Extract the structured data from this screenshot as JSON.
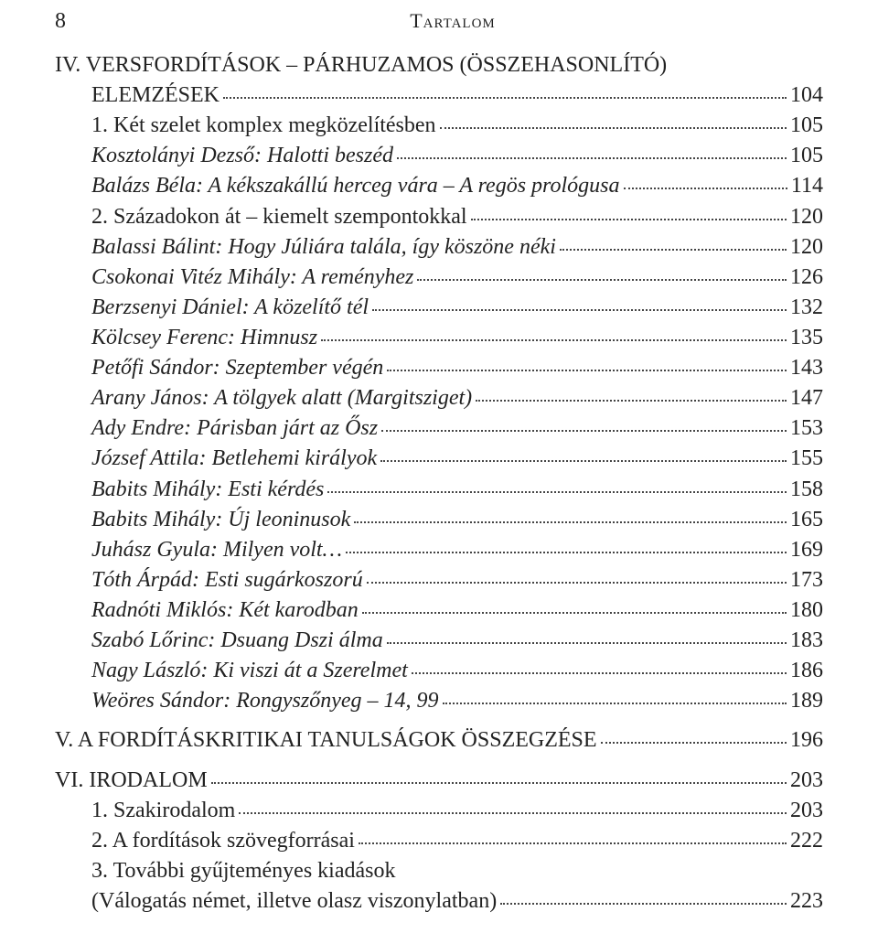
{
  "page_number": "8",
  "running_head": "Tartalom",
  "font_family": "Times New Roman",
  "text_color": "#222222",
  "background": "#ffffff",
  "leader_color": "#444444",
  "sections": {
    "iv": {
      "line1": "IV. VERSFORDÍTÁSOK – PÁRHUZAMOS (ÖSSZEHASONLÍTÓ)",
      "line2_label": "ELEMZÉSEK",
      "page": "104",
      "sub1": {
        "label": "1. Két szelet komplex megközelítésben",
        "page": "105"
      },
      "items1": [
        {
          "label": "Kosztolányi Dezső: Halotti beszéd",
          "page": "105"
        },
        {
          "label": "Balázs Béla: A kékszakállú herceg vára – A regös prológusa",
          "page": "114"
        }
      ],
      "sub2": {
        "label": "2. Századokon át – kiemelt szempontokkal",
        "page": "120"
      },
      "items2": [
        {
          "label": "Balassi Bálint: Hogy Júliára talála, így köszöne néki",
          "page": "120"
        },
        {
          "label": "Csokonai Vitéz Mihály: A reményhez",
          "page": "126"
        },
        {
          "label": "Berzsenyi Dániel: A közelítő tél",
          "page": "132"
        },
        {
          "label": "Kölcsey Ferenc: Himnusz",
          "page": "135"
        },
        {
          "label": "Petőfi Sándor: Szeptember végén",
          "page": "143"
        },
        {
          "label": "Arany János: A tölgyek alatt (Margitsziget)",
          "page": "147"
        },
        {
          "label": "Ady Endre: Párisban járt az Ősz",
          "page": "153"
        },
        {
          "label": "József Attila: Betlehemi királyok",
          "page": "155"
        },
        {
          "label": "Babits Mihály: Esti kérdés",
          "page": "158"
        },
        {
          "label": "Babits Mihály: Új leoninusok",
          "page": "165"
        },
        {
          "label": "Juhász Gyula: Milyen volt…",
          "page": "169"
        },
        {
          "label": "Tóth Árpád: Esti sugárkoszorú",
          "page": "173"
        },
        {
          "label": "Radnóti Miklós: Két karodban",
          "page": "180"
        },
        {
          "label": "Szabó Lőrinc: Dsuang Dszi álma",
          "page": "183"
        },
        {
          "label": "Nagy László: Ki viszi át a Szerelmet",
          "page": "186"
        },
        {
          "label": "Weöres Sándor: Rongyszőnyeg – 14, 99",
          "page": "189"
        }
      ]
    },
    "v": {
      "label": "V. A FORDÍTÁSKRITIKAI TANULSÁGOK ÖSSZEGZÉSE",
      "page": "196"
    },
    "vi": {
      "label": "VI. IRODALOM",
      "page": "203",
      "sub1": {
        "label": "1. Szakirodalom",
        "page": "203"
      },
      "sub2": {
        "label": "2. A fordítások szövegforrásai",
        "page": "222"
      },
      "sub3_line1": "3. További gyűjteményes kiadások",
      "sub3_line2_label": "(Válogatás német, illetve olasz viszonylatban)",
      "sub3_page": "223"
    }
  }
}
